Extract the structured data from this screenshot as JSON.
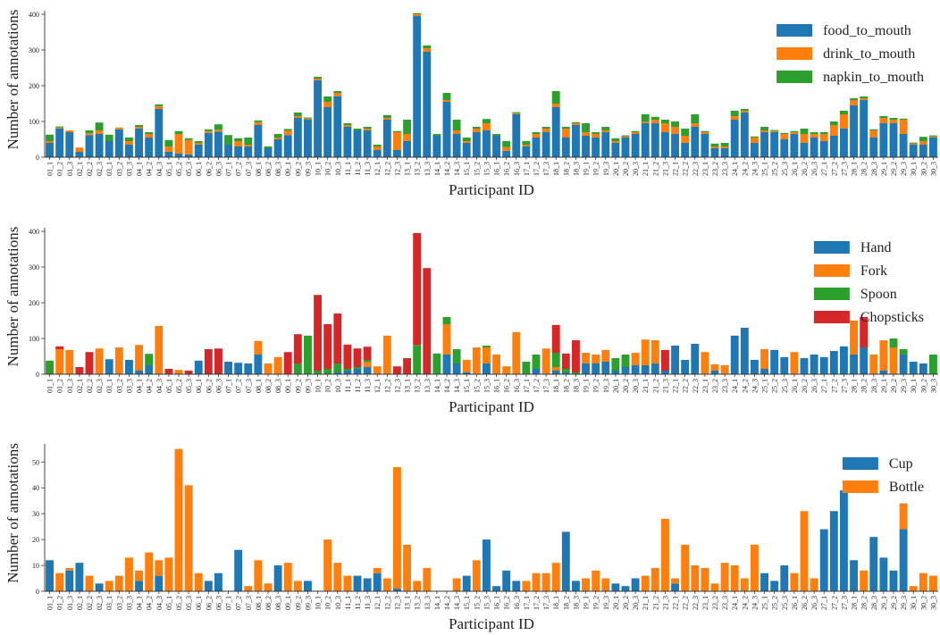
{
  "chart_data": [
    {
      "type": "bar",
      "stacked": true,
      "xlabel": "Participant ID",
      "ylabel": "Number of annotations",
      "legend": "upper right",
      "categories": [
        "01_1",
        "01_2",
        "01_3",
        "02_1",
        "02_2",
        "02_3",
        "03_1",
        "03_2",
        "03_3",
        "04_1",
        "04_2",
        "04_3",
        "05_1",
        "05_2",
        "05_3",
        "06_1",
        "06_2",
        "06_3",
        "07_1",
        "07_2",
        "07_3",
        "08_1",
        "08_2",
        "08_3",
        "09_1",
        "09_2",
        "09_3",
        "10_1",
        "10_2",
        "10_3",
        "11_1",
        "11_2",
        "11_3",
        "12_1",
        "12_2",
        "12_3",
        "13_1",
        "13_2",
        "13_3",
        "14_1",
        "14_2",
        "14_3",
        "15_1",
        "15_2",
        "15_3",
        "16_1",
        "16_2",
        "16_3",
        "17_1",
        "17_2",
        "17_3",
        "18_1",
        "18_2",
        "18_3",
        "19_1",
        "19_2",
        "19_3",
        "20_1",
        "20_2",
        "20_3",
        "21_1",
        "21_2",
        "21_3",
        "22_1",
        "22_2",
        "22_3",
        "23_1",
        "23_2",
        "23_3",
        "24_1",
        "24_2",
        "24_3",
        "25_1",
        "25_2",
        "25_3",
        "26_1",
        "26_2",
        "26_3",
        "27_1",
        "27_2",
        "27_3",
        "28_1",
        "28_2",
        "28_3",
        "29_1",
        "29_2",
        "29_3",
        "30_1",
        "30_2",
        "30_3"
      ],
      "series": [
        {
          "name": "food_to_mouth",
          "color": "#1f77b4",
          "values": [
            40,
            80,
            70,
            15,
            62,
            65,
            45,
            78,
            35,
            80,
            55,
            135,
            15,
            10,
            8,
            35,
            68,
            72,
            35,
            30,
            30,
            90,
            25,
            50,
            62,
            110,
            105,
            215,
            140,
            170,
            85,
            75,
            75,
            20,
            105,
            20,
            45,
            395,
            295,
            60,
            155,
            65,
            40,
            70,
            75,
            60,
            18,
            120,
            30,
            55,
            70,
            140,
            55,
            90,
            60,
            55,
            70,
            40,
            55,
            65,
            95,
            95,
            70,
            65,
            40,
            85,
            65,
            25,
            25,
            105,
            125,
            40,
            70,
            70,
            50,
            65,
            40,
            55,
            45,
            60,
            80,
            145,
            160,
            55,
            95,
            95,
            65,
            35,
            35,
            55
          ]
        },
        {
          "name": "drink_to_mouth",
          "color": "#ff7f0e",
          "values": [
            5,
            3,
            5,
            12,
            5,
            10,
            0,
            5,
            10,
            5,
            10,
            8,
            15,
            55,
            40,
            5,
            5,
            5,
            0,
            15,
            5,
            8,
            0,
            5,
            12,
            5,
            3,
            5,
            15,
            10,
            5,
            0,
            5,
            10,
            5,
            50,
            20,
            5,
            10,
            0,
            5,
            10,
            5,
            10,
            20,
            0,
            10,
            3,
            5,
            10,
            10,
            10,
            25,
            5,
            10,
            10,
            5,
            5,
            3,
            5,
            5,
            10,
            25,
            20,
            20,
            10,
            5,
            5,
            5,
            10,
            5,
            15,
            5,
            3,
            15,
            5,
            25,
            10,
            20,
            30,
            40,
            15,
            5,
            20,
            15,
            10,
            40,
            3,
            10,
            3
          ]
        },
        {
          "name": "napkin_to_mouth",
          "color": "#2ca02c",
          "values": [
            18,
            3,
            0,
            0,
            8,
            22,
            18,
            0,
            10,
            5,
            5,
            5,
            18,
            8,
            5,
            5,
            5,
            15,
            27,
            8,
            20,
            5,
            5,
            10,
            5,
            10,
            3,
            5,
            15,
            5,
            5,
            5,
            5,
            5,
            8,
            3,
            40,
            3,
            8,
            5,
            20,
            30,
            10,
            5,
            12,
            5,
            17,
            3,
            10,
            5,
            5,
            35,
            5,
            3,
            25,
            5,
            10,
            8,
            3,
            3,
            20,
            8,
            10,
            15,
            20,
            25,
            3,
            8,
            10,
            15,
            5,
            3,
            10,
            3,
            3,
            3,
            15,
            5,
            5,
            10,
            10,
            5,
            5,
            3,
            5,
            5,
            3,
            3,
            12,
            3
          ]
        }
      ],
      "ylim": [
        0,
        410
      ],
      "yticks": [
        0,
        100,
        200,
        300,
        400
      ]
    },
    {
      "type": "bar",
      "stacked": true,
      "xlabel": "Participant ID",
      "ylabel": "Number of annotations",
      "legend": "upper right",
      "categories": [
        "01_1",
        "01_2",
        "01_3",
        "02_1",
        "02_2",
        "02_3",
        "03_1",
        "03_2",
        "03_3",
        "04_1",
        "04_2",
        "04_3",
        "05_1",
        "05_2",
        "05_3",
        "06_1",
        "06_2",
        "06_3",
        "07_1",
        "07_2",
        "07_3",
        "08_1",
        "08_2",
        "08_3",
        "09_1",
        "09_2",
        "09_3",
        "10_1",
        "10_2",
        "10_3",
        "11_1",
        "11_2",
        "11_3",
        "12_1",
        "12_2",
        "12_3",
        "13_1",
        "13_2",
        "13_3",
        "14_1",
        "14_2",
        "14_3",
        "15_1",
        "15_2",
        "15_3",
        "16_1",
        "16_2",
        "16_3",
        "17_1",
        "17_2",
        "17_3",
        "18_1",
        "18_2",
        "18_3",
        "19_1",
        "19_2",
        "19_3",
        "20_1",
        "20_2",
        "20_3",
        "21_1",
        "21_2",
        "21_3",
        "22_1",
        "22_2",
        "22_3",
        "23_1",
        "23_2",
        "23_3",
        "24_1",
        "24_2",
        "24_3",
        "25_1",
        "25_2",
        "25_3",
        "26_1",
        "26_2",
        "26_3",
        "27_1",
        "27_2",
        "27_3",
        "28_1",
        "28_2",
        "28_3",
        "29_1",
        "29_2",
        "29_3",
        "30_1",
        "30_2",
        "30_3"
      ],
      "series": [
        {
          "name": "Hand",
          "color": "#1f77b4",
          "values": [
            0,
            0,
            0,
            0,
            0,
            0,
            42,
            0,
            40,
            10,
            25,
            0,
            0,
            0,
            0,
            38,
            0,
            0,
            35,
            32,
            30,
            55,
            0,
            0,
            0,
            0,
            0,
            0,
            0,
            5,
            10,
            15,
            20,
            0,
            0,
            0,
            0,
            0,
            0,
            0,
            55,
            30,
            5,
            0,
            30,
            0,
            0,
            0,
            0,
            15,
            0,
            10,
            5,
            0,
            30,
            30,
            35,
            10,
            20,
            25,
            25,
            30,
            10,
            80,
            40,
            85,
            0,
            10,
            0,
            108,
            130,
            40,
            15,
            68,
            48,
            0,
            45,
            55,
            48,
            65,
            78,
            55,
            75,
            0,
            10,
            0,
            55,
            35,
            30,
            0
          ]
        },
        {
          "name": "Fork",
          "color": "#ff7f0e",
          "values": [
            0,
            70,
            68,
            0,
            0,
            72,
            0,
            75,
            0,
            72,
            0,
            135,
            0,
            12,
            0,
            0,
            0,
            0,
            0,
            0,
            0,
            38,
            30,
            48,
            0,
            0,
            0,
            0,
            0,
            0,
            0,
            0,
            15,
            22,
            108,
            0,
            0,
            0,
            0,
            0,
            85,
            0,
            35,
            75,
            45,
            55,
            22,
            118,
            0,
            0,
            72,
            10,
            0,
            0,
            30,
            25,
            33,
            0,
            0,
            35,
            72,
            65,
            0,
            0,
            0,
            0,
            62,
            18,
            25,
            0,
            0,
            0,
            55,
            0,
            0,
            62,
            0,
            0,
            0,
            0,
            0,
            95,
            0,
            55,
            85,
            75,
            0,
            0,
            0,
            0
          ]
        },
        {
          "name": "Spoon",
          "color": "#2ca02c",
          "values": [
            38,
            0,
            0,
            0,
            0,
            0,
            0,
            0,
            0,
            0,
            32,
            0,
            0,
            0,
            0,
            0,
            0,
            0,
            0,
            0,
            0,
            0,
            0,
            0,
            0,
            30,
            108,
            10,
            15,
            25,
            5,
            5,
            5,
            0,
            0,
            0,
            0,
            82,
            0,
            58,
            20,
            40,
            0,
            0,
            5,
            0,
            0,
            0,
            35,
            40,
            0,
            40,
            10,
            5,
            0,
            0,
            0,
            35,
            35,
            0,
            0,
            0,
            0,
            0,
            0,
            0,
            0,
            0,
            0,
            0,
            0,
            0,
            0,
            0,
            0,
            0,
            0,
            0,
            0,
            0,
            0,
            0,
            0,
            0,
            0,
            25,
            15,
            0,
            0,
            55
          ]
        },
        {
          "name": "Chopsticks",
          "color": "#d62728",
          "values": [
            0,
            8,
            0,
            20,
            62,
            0,
            0,
            0,
            0,
            0,
            0,
            0,
            15,
            0,
            10,
            0,
            70,
            72,
            0,
            0,
            0,
            0,
            0,
            0,
            62,
            82,
            0,
            212,
            125,
            140,
            68,
            52,
            37,
            0,
            0,
            22,
            45,
            313,
            297,
            0,
            0,
            0,
            0,
            0,
            0,
            0,
            0,
            0,
            0,
            0,
            0,
            78,
            43,
            90,
            0,
            0,
            0,
            0,
            0,
            0,
            0,
            0,
            58,
            0,
            0,
            0,
            0,
            0,
            0,
            0,
            0,
            0,
            0,
            0,
            0,
            0,
            0,
            0,
            0,
            0,
            0,
            0,
            85,
            0,
            0,
            0,
            0,
            0,
            0,
            0
          ]
        }
      ],
      "ylim": [
        0,
        410
      ],
      "yticks": [
        0,
        100,
        200,
        300,
        400
      ]
    },
    {
      "type": "bar",
      "stacked": true,
      "xlabel": "Participant ID",
      "ylabel": "Number of annotations",
      "legend": "upper right",
      "categories": [
        "01_1",
        "01_2",
        "01_3",
        "02_1",
        "02_2",
        "02_3",
        "03_1",
        "03_2",
        "03_3",
        "04_1",
        "04_2",
        "04_3",
        "05_1",
        "05_2",
        "05_3",
        "06_1",
        "06_2",
        "06_3",
        "07_1",
        "07_2",
        "07_3",
        "08_1",
        "08_2",
        "08_3",
        "09_1",
        "09_2",
        "09_3",
        "10_1",
        "10_2",
        "10_3",
        "11_1",
        "11_2",
        "11_3",
        "12_1",
        "12_2",
        "12_3",
        "13_1",
        "13_2",
        "13_3",
        "14_1",
        "14_2",
        "14_3",
        "15_1",
        "15_2",
        "15_3",
        "16_1",
        "16_2",
        "16_3",
        "17_1",
        "17_2",
        "17_3",
        "18_1",
        "18_2",
        "18_3",
        "19_1",
        "19_2",
        "19_3",
        "20_1",
        "20_2",
        "20_3",
        "21_1",
        "21_2",
        "21_3",
        "22_1",
        "22_2",
        "22_3",
        "23_1",
        "23_2",
        "23_3",
        "24_1",
        "24_2",
        "24_3",
        "25_1",
        "25_2",
        "25_3",
        "26_1",
        "26_2",
        "26_3",
        "27_1",
        "27_2",
        "27_3",
        "28_1",
        "28_2",
        "28_3",
        "29_1",
        "29_2",
        "29_3",
        "30_1",
        "30_2",
        "30_3"
      ],
      "series": [
        {
          "name": "Cup",
          "color": "#1f77b4",
          "values": [
            12,
            0,
            8,
            11,
            0,
            3,
            0,
            0,
            0,
            4,
            0,
            6,
            0,
            0,
            0,
            0,
            4,
            7,
            0,
            16,
            0,
            0,
            0,
            10,
            0,
            0,
            4,
            0,
            0,
            0,
            0,
            6,
            5,
            7,
            0,
            1,
            0,
            0,
            0,
            0,
            0,
            0,
            6,
            0,
            20,
            2,
            8,
            4,
            0,
            0,
            0,
            0,
            23,
            4,
            0,
            0,
            0,
            3,
            2,
            5,
            0,
            0,
            0,
            3,
            0,
            0,
            0,
            0,
            0,
            0,
            0,
            0,
            7,
            4,
            10,
            0,
            0,
            0,
            24,
            31,
            39,
            12,
            0,
            21,
            13,
            8,
            24,
            0,
            0,
            0
          ]
        },
        {
          "name": "Bottle",
          "color": "#ff7f0e",
          "values": [
            0,
            7,
            1,
            0,
            6,
            0,
            4,
            6,
            13,
            4,
            15,
            6,
            13,
            55,
            41,
            7,
            0,
            0,
            0,
            0,
            2,
            12,
            3,
            0,
            11,
            4,
            0,
            0,
            20,
            11,
            6,
            0,
            0,
            2,
            5,
            47,
            18,
            4,
            9,
            0,
            0,
            5,
            0,
            12,
            0,
            0,
            0,
            0,
            4,
            7,
            7,
            11,
            0,
            0,
            5,
            8,
            5,
            0,
            0,
            0,
            6,
            9,
            28,
            2,
            18,
            10,
            9,
            3,
            11,
            10,
            5,
            18,
            0,
            0,
            0,
            7,
            31,
            5,
            0,
            0,
            0,
            0,
            8,
            0,
            0,
            0,
            10,
            2,
            7,
            6
          ]
        }
      ],
      "ylim": [
        0,
        57
      ],
      "yticks": [
        0,
        10,
        20,
        30,
        40,
        50
      ]
    }
  ]
}
